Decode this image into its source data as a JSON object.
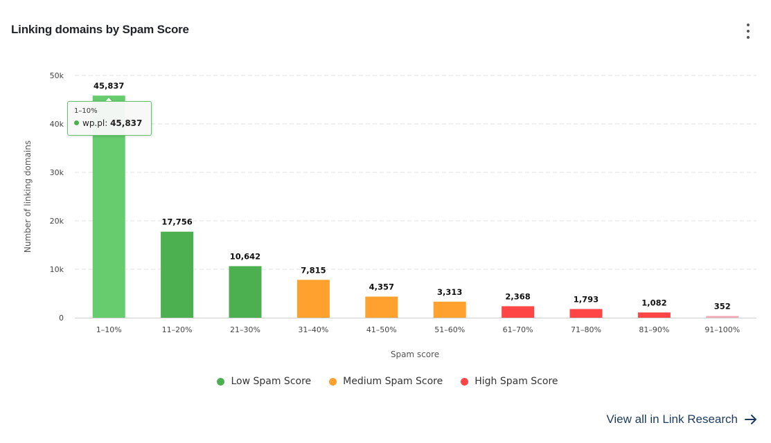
{
  "title": "Linking domains by Spam Score",
  "chart_data": {
    "type": "bar",
    "categories": [
      "1–10%",
      "11–20%",
      "21–30%",
      "31–40%",
      "41–50%",
      "51–60%",
      "61–70%",
      "71–80%",
      "81–90%",
      "91–100%"
    ],
    "values": [
      45837,
      17756,
      10642,
      7815,
      4357,
      3313,
      2368,
      1793,
      1082,
      352
    ],
    "data_labels": [
      "45,837",
      "17,756",
      "10,642",
      "7,815",
      "4,357",
      "3,313",
      "2,368",
      "1,793",
      "1,082",
      "352"
    ],
    "bar_colors": [
      "#66cc6e",
      "#4caf50",
      "#4caf50",
      "#ffa12e",
      "#ffa12e",
      "#ffa12e",
      "#ff4646",
      "#ff4646",
      "#ff4646",
      "#f4a8b4"
    ],
    "xlabel": "Spam score",
    "ylabel": "Number of linking domains",
    "ylim": [
      0,
      50000
    ],
    "yticks": [
      0,
      10000,
      20000,
      30000,
      40000,
      50000
    ],
    "ytick_labels": [
      "0",
      "10k",
      "20k",
      "30k",
      "40k",
      "50k"
    ],
    "grid": "horizontal dashed",
    "legend_position": "bottom-center",
    "legend": [
      {
        "label": "Low Spam Score",
        "color": "#4caf50"
      },
      {
        "label": "Medium Spam Score",
        "color": "#ffa12e"
      },
      {
        "label": "High Spam Score",
        "color": "#ff4646"
      }
    ]
  },
  "tooltip": {
    "header": "1–10%",
    "series": "wp.pl:",
    "value": "45,837"
  },
  "footer": {
    "link_label": "View all in Link Research"
  }
}
